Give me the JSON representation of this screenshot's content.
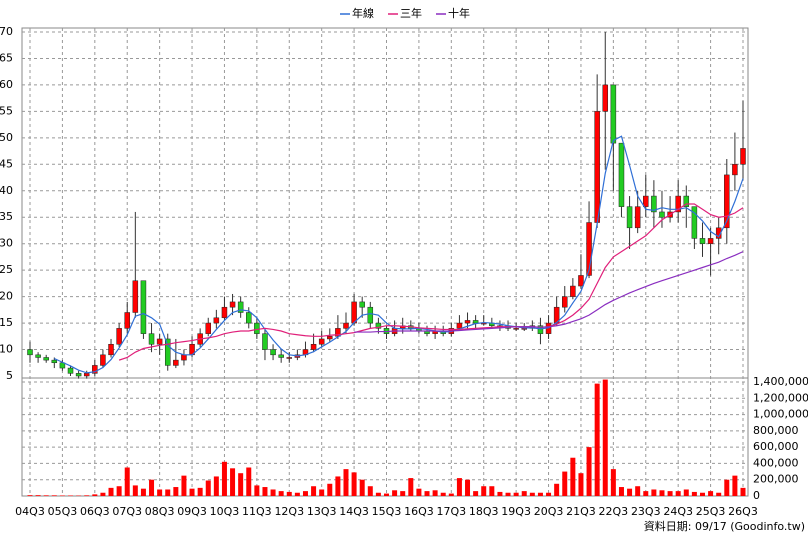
{
  "chart_data": {
    "type": "candlestick",
    "categories": [
      "04Q3",
      null,
      null,
      null,
      "05Q3",
      null,
      null,
      null,
      "06Q3",
      null,
      null,
      null,
      "07Q3",
      null,
      null,
      null,
      "08Q3",
      null,
      null,
      null,
      "09Q3",
      null,
      null,
      null,
      "10Q3",
      null,
      null,
      null,
      "11Q3",
      null,
      null,
      null,
      "12Q3",
      null,
      null,
      null,
      "13Q3",
      null,
      null,
      null,
      "14Q3",
      null,
      null,
      null,
      "15Q3",
      null,
      null,
      null,
      "16Q3",
      null,
      null,
      null,
      "17Q3",
      null,
      null,
      null,
      "18Q3",
      null,
      null,
      null,
      "19Q3",
      null,
      null,
      null,
      "20Q3",
      null,
      null,
      null,
      "21Q3",
      null,
      null,
      null,
      "22Q3",
      null,
      null,
      null,
      "23Q3",
      null,
      null,
      null,
      "24Q3",
      null,
      null,
      null,
      "25Q3",
      null,
      null,
      null,
      "26Q3"
    ],
    "candles": {
      "up_color": "#ff0000",
      "down_color": "#22cc22",
      "open": [
        10,
        9,
        8.5,
        8,
        7.5,
        6.5,
        5.5,
        5,
        5.5,
        7,
        9,
        11,
        14,
        17,
        23,
        13,
        11,
        12,
        7,
        8,
        9,
        11,
        13,
        15,
        16,
        18,
        19,
        17,
        15,
        13,
        10,
        9,
        8.5,
        8.5,
        9,
        10,
        11,
        12,
        12.5,
        14,
        15,
        19,
        18,
        15,
        14,
        13,
        14,
        14.5,
        14,
        13.5,
        13,
        13.5,
        13,
        14,
        15,
        15.5,
        15,
        15,
        14.5,
        14.5,
        14,
        14,
        14,
        14.5,
        13,
        15,
        18,
        20,
        22,
        24,
        34,
        55,
        60,
        49,
        37,
        33,
        37,
        39,
        36,
        35,
        36,
        39,
        37,
        31,
        30,
        31,
        33,
        43,
        45
      ],
      "high": [
        11.5,
        9.5,
        9,
        8.5,
        8,
        7,
        6,
        6,
        8,
        10,
        12,
        15,
        19,
        36,
        23,
        15,
        13,
        13,
        12,
        10,
        12.5,
        14,
        16,
        17.5,
        20,
        20.5,
        20,
        18,
        16,
        14,
        11,
        10,
        9.5,
        10,
        11.5,
        13,
        13.5,
        14,
        16.5,
        17,
        20.5,
        20,
        19,
        16,
        14.5,
        15.5,
        16,
        15.5,
        15,
        14.5,
        14.5,
        14.5,
        15,
        16.5,
        17,
        16.5,
        16.5,
        16,
        15.5,
        15.5,
        15,
        15,
        15.5,
        16,
        16.5,
        20,
        22,
        23.5,
        28,
        38,
        62,
        70,
        58,
        49,
        39,
        40,
        43,
        42,
        40,
        39,
        42,
        41,
        37,
        34,
        33,
        35,
        46,
        51,
        57
      ],
      "low": [
        7.5,
        7.5,
        7.5,
        6.5,
        6,
        5,
        4.5,
        4.5,
        5,
        6.5,
        8.5,
        10.5,
        13,
        16,
        12,
        9.5,
        9,
        6,
        6.5,
        7,
        8.5,
        10.5,
        12.5,
        14,
        15.5,
        16.5,
        16,
        14,
        12,
        8,
        8,
        7.5,
        7.5,
        8,
        8.5,
        9.5,
        10.5,
        11.5,
        12,
        13,
        14.5,
        16,
        14,
        13,
        12,
        12.5,
        13,
        13.5,
        13,
        12.5,
        12,
        12.5,
        12.5,
        13.5,
        14,
        14,
        14.5,
        14,
        13.5,
        13.5,
        13.5,
        13.5,
        13.5,
        11,
        12,
        14.5,
        17,
        19.5,
        21.5,
        23.5,
        33,
        44,
        40,
        35,
        29,
        32,
        35,
        33,
        33,
        34,
        34,
        33,
        29,
        27.5,
        24,
        28,
        30,
        40,
        42
      ],
      "close": [
        9,
        8.5,
        8,
        7.5,
        6.5,
        5.5,
        5,
        5.5,
        7,
        9,
        11,
        14,
        17,
        23,
        13,
        11,
        12,
        7,
        8,
        9,
        11,
        13,
        15,
        16,
        18,
        19,
        17,
        15,
        13,
        10,
        9,
        8.5,
        8.5,
        9,
        10,
        11,
        12,
        12.5,
        14,
        15,
        19,
        18,
        15,
        14,
        13,
        14,
        14.5,
        14,
        13.5,
        13,
        13.5,
        13,
        14,
        15,
        15.5,
        15,
        15,
        14.5,
        14.5,
        14,
        14,
        14,
        14.5,
        13,
        15,
        18,
        20,
        22,
        24,
        34,
        55,
        60,
        49,
        37,
        33,
        37,
        39,
        36,
        35,
        36,
        39,
        37,
        31,
        30,
        31,
        33,
        43,
        45,
        48
      ]
    },
    "series": [
      {
        "name": "年線",
        "color": "#2f6fd6",
        "values": [
          null,
          null,
          null,
          8.3,
          7.6,
          6.9,
          6.1,
          5.6,
          5.8,
          6.6,
          8.1,
          10.3,
          12.8,
          16.3,
          16.8,
          16.0,
          14.8,
          10.8,
          9.5,
          9.0,
          9.0,
          10.3,
          12.0,
          13.8,
          15.5,
          17.0,
          17.5,
          17.3,
          16.0,
          13.8,
          11.8,
          10.1,
          9.0,
          8.8,
          9.0,
          9.6,
          10.5,
          11.4,
          12.4,
          13.4,
          15.1,
          16.5,
          16.8,
          16.5,
          15.0,
          14.0,
          13.9,
          13.9,
          14.0,
          13.8,
          13.5,
          13.3,
          13.4,
          13.9,
          14.4,
          14.9,
          15.1,
          15.0,
          14.8,
          14.5,
          14.3,
          14.1,
          14.1,
          13.9,
          14.1,
          15.1,
          16.5,
          18.8,
          21.0,
          25.0,
          33.8,
          43.3,
          49.5,
          50.3,
          44.8,
          39.0,
          36.5,
          36.3,
          36.8,
          36.5,
          36.5,
          36.8,
          35.8,
          34.3,
          32.3,
          31.3,
          34.3,
          38.0,
          42.3
        ]
      },
      {
        "name": "三年",
        "color": "#e0207a",
        "values": [
          null,
          null,
          null,
          null,
          null,
          null,
          null,
          null,
          null,
          null,
          null,
          8.0,
          8.5,
          9.5,
          10.2,
          10.5,
          10.8,
          11.0,
          11.3,
          11.5,
          11.7,
          12.0,
          12.2,
          12.5,
          13.0,
          13.3,
          13.5,
          13.5,
          13.8,
          14.0,
          13.8,
          13.5,
          13.0,
          12.8,
          12.6,
          12.5,
          12.5,
          12.7,
          12.8,
          13.0,
          13.2,
          13.6,
          14.0,
          14.2,
          14.5,
          14.5,
          14.4,
          14.3,
          14.1,
          14.0,
          13.9,
          13.8,
          13.8,
          13.8,
          13.9,
          14.0,
          14.1,
          14.2,
          14.3,
          14.3,
          14.3,
          14.3,
          14.3,
          14.2,
          14.3,
          14.8,
          15.5,
          16.5,
          17.8,
          19.5,
          22.5,
          25.5,
          27.5,
          28.5,
          29.5,
          30.5,
          31.5,
          33.0,
          34.5,
          35.5,
          36.5,
          37.5,
          37.5,
          36.5,
          35.5,
          35.0,
          35.2,
          35.8,
          36.8
        ]
      },
      {
        "name": "十年",
        "color": "#8a2ec0",
        "values": [
          null,
          null,
          null,
          null,
          null,
          null,
          null,
          null,
          null,
          null,
          null,
          null,
          null,
          null,
          null,
          null,
          null,
          null,
          null,
          null,
          null,
          null,
          null,
          null,
          null,
          null,
          null,
          null,
          null,
          null,
          null,
          null,
          null,
          null,
          null,
          null,
          null,
          null,
          null,
          null,
          13.3,
          13.3,
          13.3,
          13.4,
          13.4,
          13.5,
          13.5,
          13.5,
          13.5,
          13.5,
          13.5,
          13.5,
          13.5,
          13.6,
          13.7,
          13.8,
          13.9,
          14.0,
          14.1,
          14.2,
          14.3,
          14.3,
          14.3,
          14.2,
          14.3,
          14.5,
          14.8,
          15.3,
          15.8,
          16.5,
          17.5,
          18.5,
          19.3,
          20.0,
          20.7,
          21.3,
          21.9,
          22.5,
          23.0,
          23.5,
          24.0,
          24.5,
          25.0,
          25.5,
          26.0,
          26.5,
          27.2,
          27.8,
          28.5
        ]
      }
    ],
    "ylim": [
      5,
      70
    ],
    "yticks": [
      5,
      10,
      15,
      20,
      25,
      30,
      35,
      40,
      45,
      50,
      55,
      60,
      65,
      70
    ],
    "grid": true,
    "volume": {
      "color": "#ff0000",
      "ylim": [
        0,
        1400000
      ],
      "yticks": [
        0,
        {
          "value": 200000,
          "label": "200,000"
        },
        {
          "value": 400000,
          "label": "400,000"
        },
        {
          "value": 600000,
          "label": "600,000"
        },
        {
          "value": 800000,
          "label": "800,000"
        },
        {
          "value": 1000000,
          "label": "1,000,000"
        },
        {
          "value": 1200000,
          "label": "1,200,000"
        },
        {
          "value": 1400000,
          "label": "1,400,000"
        }
      ],
      "values": [
        10000,
        10000,
        8000,
        8000,
        6000,
        6000,
        5000,
        8000,
        20000,
        40000,
        100000,
        120000,
        350000,
        130000,
        90000,
        200000,
        80000,
        80000,
        110000,
        250000,
        90000,
        100000,
        190000,
        240000,
        420000,
        340000,
        280000,
        350000,
        130000,
        110000,
        80000,
        60000,
        50000,
        40000,
        60000,
        120000,
        80000,
        150000,
        240000,
        330000,
        290000,
        200000,
        120000,
        40000,
        30000,
        70000,
        60000,
        220000,
        90000,
        60000,
        70000,
        40000,
        30000,
        220000,
        200000,
        60000,
        120000,
        120000,
        50000,
        40000,
        40000,
        60000,
        40000,
        40000,
        40000,
        150000,
        300000,
        470000,
        280000,
        600000,
        1380000,
        1430000,
        330000,
        110000,
        90000,
        120000,
        60000,
        80000,
        70000,
        60000,
        60000,
        80000,
        50000,
        40000,
        60000,
        40000,
        200000,
        250000,
        100000
      ]
    },
    "footer": "資料日期: 09/17 (Goodinfo.tw)"
  }
}
